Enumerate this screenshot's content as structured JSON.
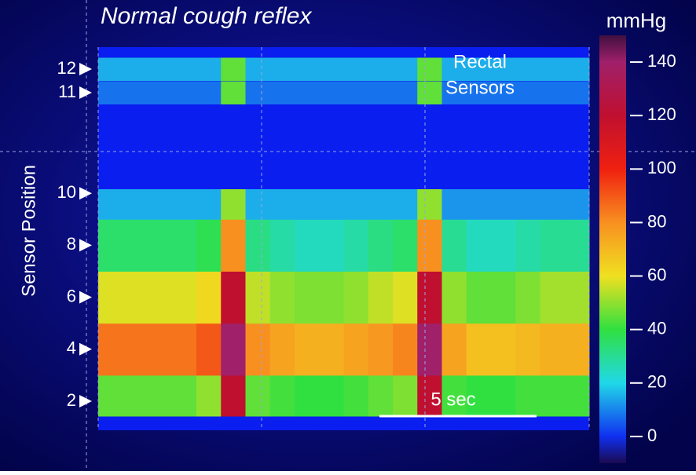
{
  "chart_data": {
    "type": "heatmap",
    "title": "Normal cough reflex",
    "ylabel": "Sensor Position",
    "colorbar_label": "mmHg",
    "annotation": [
      "Rectal",
      "Sensors"
    ],
    "scale_bar_label": "5 sec",
    "yticks": [
      2,
      4,
      6,
      8,
      10,
      11,
      12
    ],
    "categories": [
      null,
      null,
      null,
      null,
      null,
      null,
      null,
      null,
      null,
      null,
      null,
      null,
      null,
      null,
      null,
      null,
      null,
      null,
      null,
      null
    ],
    "values": [
      [
        45,
        45,
        45,
        45,
        50,
        120,
        45,
        42,
        40,
        40,
        42,
        45,
        48,
        120,
        42,
        40,
        40,
        42,
        42,
        42
      ],
      [
        85,
        85,
        85,
        85,
        90,
        140,
        80,
        75,
        72,
        72,
        75,
        78,
        82,
        140,
        75,
        68,
        68,
        70,
        72,
        72
      ],
      [
        58,
        58,
        58,
        58,
        62,
        120,
        55,
        50,
        48,
        48,
        50,
        55,
        58,
        120,
        50,
        45,
        45,
        48,
        52,
        52
      ],
      [
        35,
        35,
        35,
        35,
        38,
        80,
        32,
        28,
        25,
        25,
        28,
        32,
        35,
        80,
        30,
        25,
        25,
        28,
        30,
        30
      ],
      [
        15,
        15,
        15,
        15,
        15,
        50,
        15,
        15,
        15,
        15,
        15,
        15,
        15,
        50,
        12,
        12,
        12,
        12,
        12,
        12
      ],
      [
        8,
        8,
        8,
        8,
        8,
        45,
        8,
        8,
        8,
        8,
        8,
        8,
        8,
        45,
        8,
        8,
        8,
        8,
        8,
        8
      ],
      [
        15,
        15,
        15,
        15,
        15,
        45,
        15,
        15,
        15,
        15,
        15,
        15,
        15,
        45,
        15,
        15,
        15,
        15,
        15,
        15
      ]
    ],
    "zlim": [
      -10,
      150
    ],
    "zticks": [
      0,
      20,
      40,
      60,
      80,
      100,
      120,
      140
    ],
    "colorscale": [
      [
        -10,
        "#1a0a50"
      ],
      [
        0,
        "#1030f0"
      ],
      [
        20,
        "#20d8e8"
      ],
      [
        40,
        "#30e040"
      ],
      [
        60,
        "#f0e020"
      ],
      [
        80,
        "#f89020"
      ],
      [
        100,
        "#f02010"
      ],
      [
        120,
        "#c01030"
      ],
      [
        140,
        "#a0206a"
      ],
      [
        150,
        "#401040"
      ]
    ]
  }
}
